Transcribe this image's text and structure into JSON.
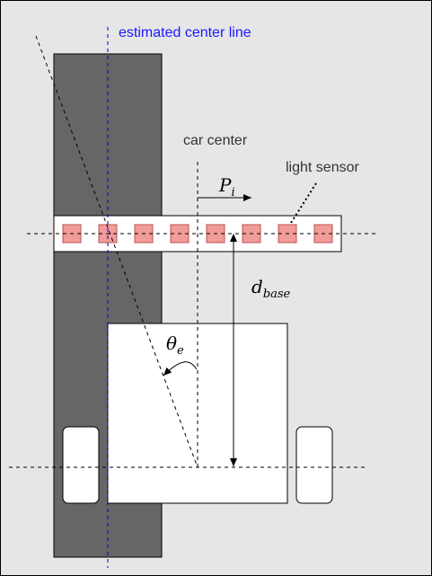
{
  "labels": {
    "estimated_center_line": "estimated center line",
    "car_center": "car center",
    "light_sensor": "light sensor"
  },
  "math": {
    "p_main": "P",
    "p_sub": "i",
    "d_main": "d",
    "d_sub": "base",
    "theta_main": "θ",
    "theta_sub": "e"
  },
  "colors": {
    "background": "#e6e6e6",
    "track": "#666666",
    "sensor_fill": "#f19c99",
    "sensor_stroke": "#b85450",
    "center_line": "#0000cc"
  },
  "sensor_count": 8
}
